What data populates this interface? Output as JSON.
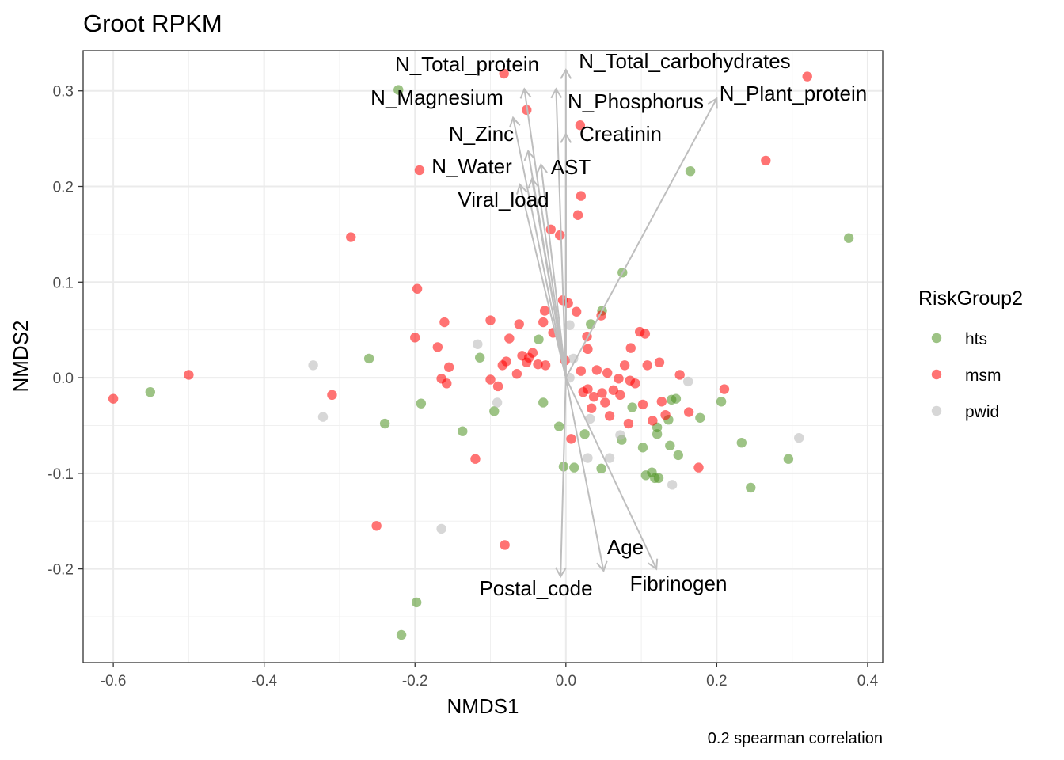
{
  "chart_data": {
    "type": "scatter",
    "title": "Groot RPKM",
    "xlabel": "NMDS1",
    "ylabel": "NMDS2",
    "caption": "0.2 spearman correlation",
    "xlim": [
      -0.64,
      0.42
    ],
    "ylim": [
      -0.298,
      0.342
    ],
    "x_ticks": [
      -0.6,
      -0.4,
      -0.2,
      0.0,
      0.2,
      0.4
    ],
    "x_tick_labels": [
      "-0.6",
      "-0.4",
      "-0.2",
      "0.0",
      "0.2",
      "0.4"
    ],
    "y_ticks": [
      -0.2,
      -0.1,
      0.0,
      0.1,
      0.2,
      0.3
    ],
    "y_tick_labels": [
      "-0.2",
      "-0.1",
      "0.0",
      "0.1",
      "0.2",
      "0.3"
    ],
    "grid": true,
    "legend": {
      "title": "RiskGroup2",
      "position": "right",
      "entries": [
        {
          "name": "hts",
          "color": "#4d9221"
        },
        {
          "name": "msm",
          "color": "#ff0000"
        },
        {
          "name": "pwid",
          "color": "#bdbdbd"
        }
      ]
    },
    "series": [
      {
        "name": "hts",
        "color": "#4d9221",
        "points": [
          [
            -0.222,
            0.301
          ],
          [
            -0.551,
            -0.015
          ],
          [
            -0.261,
            0.02
          ],
          [
            -0.24,
            -0.048
          ],
          [
            -0.192,
            -0.027
          ],
          [
            -0.137,
            -0.056
          ],
          [
            -0.114,
            0.021
          ],
          [
            -0.095,
            -0.035
          ],
          [
            -0.036,
            0.04
          ],
          [
            -0.03,
            -0.026
          ],
          [
            -0.009,
            -0.051
          ],
          [
            -0.003,
            -0.093
          ],
          [
            0.011,
            -0.094
          ],
          [
            0.025,
            -0.059
          ],
          [
            0.033,
            0.056
          ],
          [
            0.047,
            -0.095
          ],
          [
            0.048,
            0.07
          ],
          [
            0.074,
            -0.065
          ],
          [
            0.075,
            0.11
          ],
          [
            0.088,
            -0.031
          ],
          [
            0.102,
            -0.073
          ],
          [
            0.106,
            -0.102
          ],
          [
            0.114,
            -0.099
          ],
          [
            0.118,
            -0.105
          ],
          [
            0.123,
            -0.105
          ],
          [
            0.121,
            -0.052
          ],
          [
            0.121,
            -0.059
          ],
          [
            0.136,
            -0.044
          ],
          [
            0.138,
            -0.071
          ],
          [
            0.14,
            -0.023
          ],
          [
            0.146,
            -0.022
          ],
          [
            0.149,
            -0.081
          ],
          [
            0.165,
            0.216
          ],
          [
            0.178,
            -0.042
          ],
          [
            0.206,
            -0.025
          ],
          [
            0.233,
            -0.068
          ],
          [
            0.245,
            -0.115
          ],
          [
            0.295,
            -0.085
          ],
          [
            0.375,
            0.146
          ],
          [
            -0.198,
            -0.235
          ],
          [
            -0.218,
            -0.269
          ]
        ]
      },
      {
        "name": "msm",
        "color": "#ff0000",
        "points": [
          [
            -0.6,
            -0.022
          ],
          [
            -0.5,
            0.003
          ],
          [
            -0.31,
            -0.018
          ],
          [
            -0.285,
            0.147
          ],
          [
            -0.197,
            0.093
          ],
          [
            -0.2,
            0.042
          ],
          [
            -0.194,
            0.217
          ],
          [
            -0.17,
            0.032
          ],
          [
            -0.165,
            -0.001
          ],
          [
            -0.161,
            0.058
          ],
          [
            -0.158,
            -0.006
          ],
          [
            -0.155,
            0.011
          ],
          [
            -0.12,
            -0.085
          ],
          [
            -0.1,
            0.06
          ],
          [
            -0.1,
            -0.002
          ],
          [
            -0.09,
            -0.009
          ],
          [
            -0.084,
            0.013
          ],
          [
            -0.079,
            0.017
          ],
          [
            -0.081,
            -0.175
          ],
          [
            -0.075,
            0.041
          ],
          [
            -0.065,
            0.004
          ],
          [
            -0.062,
            0.056
          ],
          [
            -0.058,
            0.023
          ],
          [
            -0.052,
            0.016
          ],
          [
            -0.049,
            0.021
          ],
          [
            -0.044,
            0.026
          ],
          [
            -0.037,
            0.014
          ],
          [
            -0.03,
            0.058
          ],
          [
            -0.028,
            0.07
          ],
          [
            -0.027,
            0.013
          ],
          [
            -0.02,
            0.155
          ],
          [
            -0.017,
            0.047
          ],
          [
            -0.008,
            0.149
          ],
          [
            -0.004,
            0.081
          ],
          [
            -0.001,
            0.018
          ],
          [
            0.003,
            0.078
          ],
          [
            0.007,
            -0.064
          ],
          [
            0.014,
            0.069
          ],
          [
            0.016,
            0.17
          ],
          [
            0.019,
            0.264
          ],
          [
            0.02,
            0.19
          ],
          [
            0.02,
            0.007
          ],
          [
            0.023,
            -0.015
          ],
          [
            0.028,
            0.043
          ],
          [
            0.029,
            -0.012
          ],
          [
            0.029,
            0.03
          ],
          [
            0.034,
            -0.032
          ],
          [
            0.037,
            -0.02
          ],
          [
            0.041,
            0.008
          ],
          [
            0.047,
            0.065
          ],
          [
            0.048,
            -0.016
          ],
          [
            0.052,
            -0.026
          ],
          [
            0.055,
            0.005
          ],
          [
            0.058,
            -0.04
          ],
          [
            0.063,
            -0.013
          ],
          [
            0.07,
            -0.001
          ],
          [
            0.072,
            -0.018
          ],
          [
            0.078,
            0.013
          ],
          [
            0.083,
            -0.048
          ],
          [
            0.085,
            -0.003
          ],
          [
            0.086,
            0.031
          ],
          [
            0.092,
            -0.006
          ],
          [
            0.098,
            0.048
          ],
          [
            0.102,
            -0.028
          ],
          [
            0.105,
            0.046
          ],
          [
            0.108,
            0.013
          ],
          [
            0.115,
            -0.045
          ],
          [
            0.124,
            0.016
          ],
          [
            0.127,
            -0.025
          ],
          [
            0.132,
            -0.039
          ],
          [
            0.151,
            0.003
          ],
          [
            0.163,
            -0.036
          ],
          [
            0.176,
            -0.094
          ],
          [
            0.21,
            -0.012
          ],
          [
            0.265,
            0.227
          ],
          [
            0.32,
            0.315
          ],
          [
            -0.251,
            -0.155
          ],
          [
            -0.052,
            0.28
          ],
          [
            -0.082,
            0.318
          ]
        ]
      },
      {
        "name": "pwid",
        "color": "#bdbdbd",
        "points": [
          [
            -0.335,
            0.013
          ],
          [
            -0.322,
            -0.041
          ],
          [
            -0.117,
            0.035
          ],
          [
            -0.091,
            -0.026
          ],
          [
            -0.165,
            -0.158
          ],
          [
            0.005,
            0.055
          ],
          [
            0.029,
            -0.084
          ],
          [
            0.032,
            -0.043
          ],
          [
            0.058,
            -0.084
          ],
          [
            0.072,
            -0.06
          ],
          [
            0.141,
            -0.112
          ],
          [
            0.162,
            -0.004
          ],
          [
            0.309,
            -0.063
          ],
          [
            0.005,
            0.0
          ],
          [
            0.01,
            0.02
          ]
        ]
      }
    ],
    "vectors": [
      {
        "label": "N_Total_protein",
        "x": -0.055,
        "y": 0.302
      },
      {
        "label": "N_Total_carbohydrates",
        "x": 0.0,
        "y": 0.322
      },
      {
        "label": "N_Magnesium",
        "x": -0.07,
        "y": 0.272
      },
      {
        "label": "N_Phosphorus",
        "x": -0.013,
        "y": 0.302
      },
      {
        "label": "N_Plant_protein",
        "x": 0.2,
        "y": 0.292
      },
      {
        "label": "Creatinin",
        "x": 0.0,
        "y": 0.255
      },
      {
        "label": "N_Zinc",
        "x": -0.05,
        "y": 0.237
      },
      {
        "label": "N_Water",
        "x": -0.061,
        "y": 0.202
      },
      {
        "label": "AST",
        "x": -0.033,
        "y": 0.223
      },
      {
        "label": "Viral_load",
        "x": -0.045,
        "y": 0.208
      },
      {
        "label": "Age",
        "x": 0.05,
        "y": -0.202
      },
      {
        "label": "Fibrinogen",
        "x": 0.12,
        "y": -0.2
      },
      {
        "label": "Postal_code",
        "x": -0.007,
        "y": -0.208
      }
    ]
  }
}
